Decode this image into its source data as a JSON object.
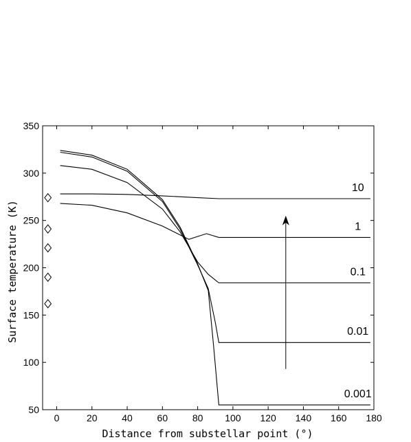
{
  "chart_data": {
    "type": "line",
    "xlabel": "Distance from substellar point (°)",
    "ylabel": "Surface temperature (K)",
    "xlim": [
      -8,
      180
    ],
    "ylim": [
      50,
      350
    ],
    "xticks": [
      0,
      20,
      40,
      60,
      80,
      100,
      120,
      140,
      160,
      180
    ],
    "yticks": [
      50,
      100,
      150,
      200,
      250,
      300,
      350
    ],
    "grid": false,
    "series": [
      {
        "name": "10",
        "color": "#000000",
        "x": [
          2,
          20,
          40,
          60,
          80,
          92,
          178
        ],
        "y": [
          278,
          278,
          277.5,
          276,
          274,
          273,
          273
        ]
      },
      {
        "name": "1",
        "color": "#000000",
        "x": [
          2,
          20,
          40,
          60,
          75,
          85,
          92,
          178
        ],
        "y": [
          268,
          266,
          258,
          244,
          230,
          236,
          232,
          232
        ]
      },
      {
        "name": "0.1",
        "color": "#000000",
        "x": [
          2,
          20,
          40,
          60,
          70,
          80,
          86,
          92,
          178
        ],
        "y": [
          308,
          304,
          290,
          262,
          238,
          206,
          193,
          184,
          184
        ]
      },
      {
        "name": "0.01",
        "color": "#000000",
        "x": [
          2,
          20,
          40,
          60,
          70,
          80,
          86,
          90,
          92,
          178
        ],
        "y": [
          322,
          317,
          302,
          270,
          241,
          203,
          178,
          142,
          121,
          121
        ]
      },
      {
        "name": "0.001",
        "color": "#000000",
        "x": [
          2,
          20,
          40,
          60,
          70,
          80,
          86,
          89,
          92,
          178
        ],
        "y": [
          324,
          319,
          304,
          272,
          243,
          204,
          176,
          118,
          55,
          55
        ]
      }
    ],
    "markers": {
      "shape": "diamond",
      "x": [
        -5,
        -5,
        -5,
        -5,
        -5
      ],
      "y": [
        274,
        241,
        221,
        190,
        162
      ]
    },
    "arrow": {
      "x": 130,
      "y_from": 93,
      "y_to": 255
    },
    "curve_labels": [
      {
        "text": "10",
        "x": 160,
        "y": 281
      },
      {
        "text": "1",
        "x": 160,
        "y": 240
      },
      {
        "text": "0.1",
        "x": 160,
        "y": 192
      },
      {
        "text": "0.01",
        "x": 160,
        "y": 129
      },
      {
        "text": "0.001",
        "x": 160,
        "y": 63
      }
    ]
  }
}
